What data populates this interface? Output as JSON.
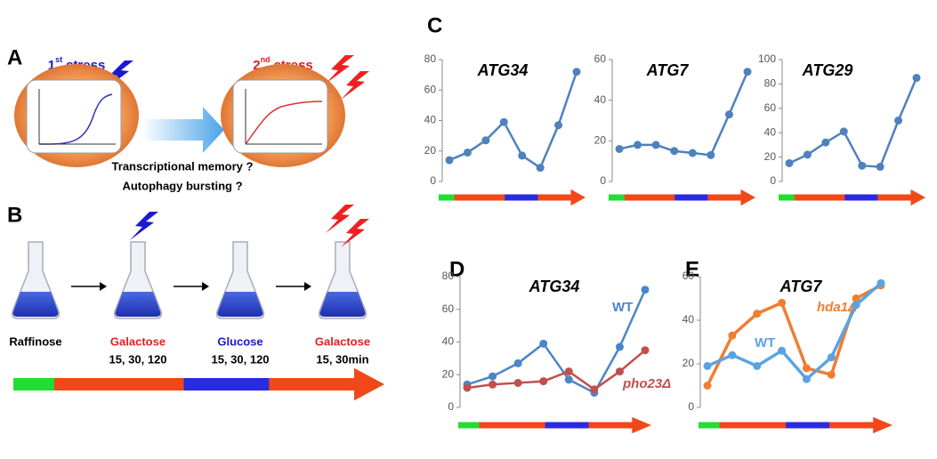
{
  "panels": {
    "letters": [
      "A",
      "B",
      "C",
      "D",
      "E"
    ],
    "A": {
      "stress1": {
        "num": "1",
        "sup": "st",
        "word": "stress"
      },
      "stress2": {
        "num": "2",
        "sup": "nd",
        "word": "stress"
      },
      "questions": [
        "Transcriptional memory ?",
        "Autophagy bursting ?"
      ]
    },
    "B": {
      "steps": [
        {
          "medium": "Raffinose",
          "color": "#000000",
          "times": null
        },
        {
          "medium": "Galactose",
          "color": "#e02020",
          "times": "15, 30, 120"
        },
        {
          "medium": "Glucose",
          "color": "#1a1ad0",
          "times": "15, 30, 120"
        },
        {
          "medium": "Galactose",
          "color": "#e02020",
          "times": "15, 30min"
        }
      ]
    }
  },
  "chart_data": [
    {
      "type": "line",
      "title": "ATG34",
      "ylim": [
        0,
        80
      ],
      "yticks": [
        0,
        20,
        40,
        60,
        80
      ],
      "series": [
        {
          "color": "#4f81bd",
          "values": [
            14,
            19,
            27,
            39,
            17,
            9,
            37,
            72
          ]
        }
      ]
    },
    {
      "type": "line",
      "title": "ATG7",
      "ylim": [
        0,
        60
      ],
      "yticks": [
        0,
        20,
        40,
        60
      ],
      "series": [
        {
          "color": "#4f81bd",
          "values": [
            16,
            18,
            18,
            15,
            14,
            13,
            33,
            54
          ]
        }
      ]
    },
    {
      "type": "line",
      "title": "ATG29",
      "ylim": [
        0,
        100
      ],
      "yticks": [
        0,
        20,
        40,
        60,
        80,
        100
      ],
      "series": [
        {
          "color": "#4f81bd",
          "values": [
            15,
            22,
            32,
            41,
            13,
            12,
            50,
            85
          ]
        }
      ]
    },
    {
      "type": "line",
      "title": "ATG34",
      "ylim": [
        0,
        80
      ],
      "yticks": [
        0,
        20,
        40,
        60,
        80
      ],
      "series": [
        {
          "name": "WT",
          "color": "#4a86c8",
          "values": [
            14,
            19,
            27,
            39,
            17,
            9,
            37,
            72
          ]
        },
        {
          "name": "pho23Δ",
          "color": "#c0504d",
          "values": [
            12,
            14,
            15,
            16,
            22,
            11,
            22,
            35
          ]
        }
      ]
    },
    {
      "type": "line",
      "title": "ATG7",
      "ylim": [
        0,
        60
      ],
      "yticks": [
        0,
        20,
        40,
        60
      ],
      "series": [
        {
          "name": "hda1Δ",
          "color": "#f07d32",
          "values": [
            10,
            33,
            43,
            48,
            18,
            15,
            50,
            56
          ]
        },
        {
          "name": "WT",
          "color": "#5ba3e0",
          "values": [
            19,
            24,
            19,
            26,
            13,
            23,
            47,
            57
          ]
        }
      ]
    }
  ]
}
